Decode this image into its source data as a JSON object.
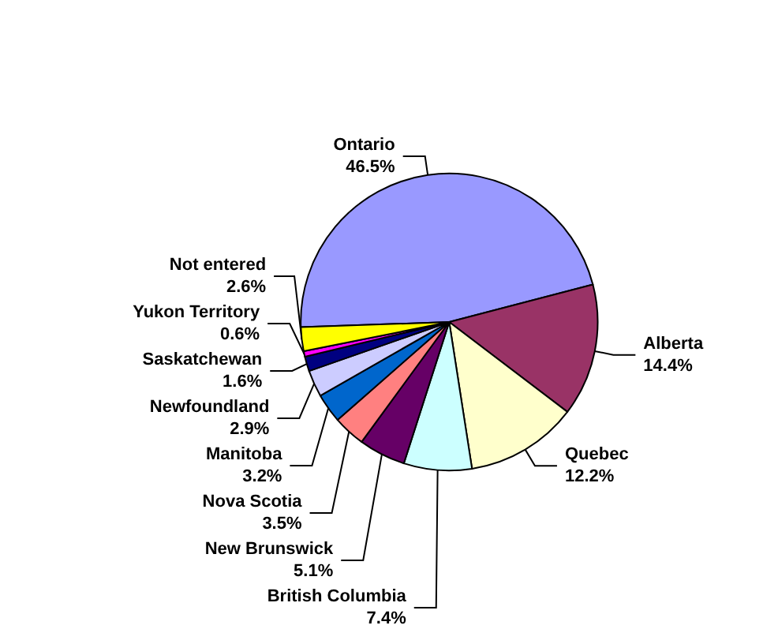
{
  "chart_data": {
    "type": "pie",
    "categories": [
      "Ontario",
      "Alberta",
      "Quebec",
      "British Columbia",
      "New Brunswick",
      "Nova Scotia",
      "Manitoba",
      "Newfoundland",
      "Saskatchewan",
      "Yukon Territory",
      "Not entered"
    ],
    "values": [
      46.5,
      14.4,
      12.2,
      7.4,
      5.1,
      3.5,
      3.2,
      2.9,
      1.6,
      0.6,
      2.6
    ],
    "value_labels": [
      "46.5%",
      "14.4%",
      "12.2%",
      "7.4%",
      "5.1%",
      "3.5%",
      "3.2%",
      "2.9%",
      "1.6%",
      "0.6%",
      "2.6%"
    ],
    "colors": [
      "#9999ff",
      "#993366",
      "#ffffcc",
      "#ccffff",
      "#660066",
      "#ff8080",
      "#0066cc",
      "#ccccff",
      "#000080",
      "#ff00ff",
      "#ffff00"
    ],
    "legend": false
  }
}
